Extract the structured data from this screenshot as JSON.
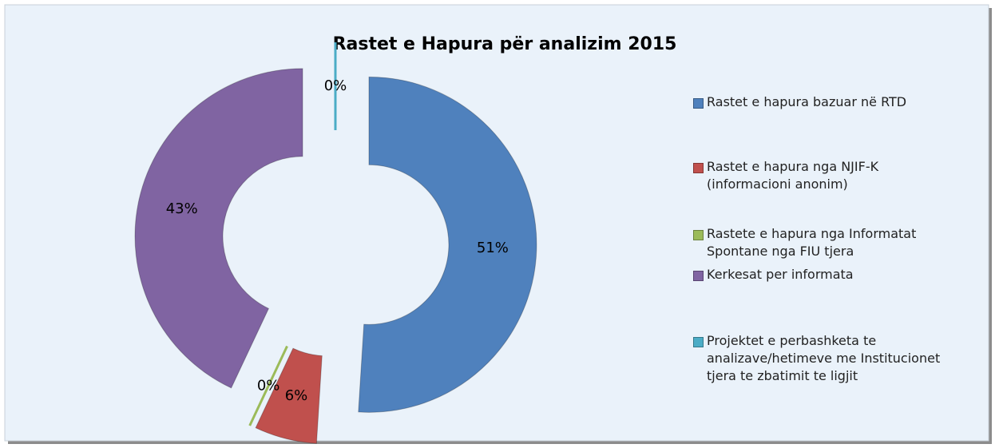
{
  "chart_data": {
    "type": "doughnut",
    "title": "Rastet e Hapura për analizim 2015",
    "categories": [
      "Rastet e hapura bazuar në RTD",
      "Rastet e hapura nga NJIF-K (informacioni anonim)",
      "Rastete e hapura nga Informatat Spontane nga FIU tjera",
      "Kerkesat per informata",
      "Projektet e perbashketa te analizave/hetimeve me Institucionet tjera te zbatimit te ligjit"
    ],
    "values": [
      51,
      6,
      0,
      43,
      0
    ],
    "value_labels": [
      "51%",
      "6%",
      "0%",
      "43%",
      "0%"
    ],
    "colors": [
      "#4f81bd",
      "#c0504d",
      "#9bbb59",
      "#8064a2",
      "#4bacc6"
    ],
    "legend": "right"
  }
}
